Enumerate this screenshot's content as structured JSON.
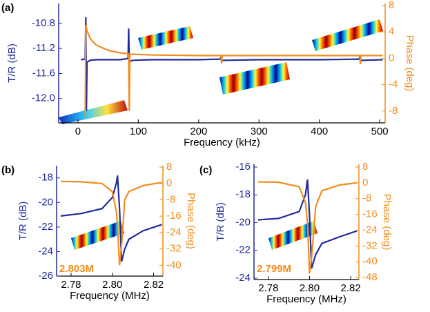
{
  "chart_data": [
    {
      "type": "line",
      "label": "(a)",
      "xlabel": "Frequency (kHz)",
      "ylabel": "T/R (dB)",
      "y2label": "Phase (deg)",
      "x": [
        5,
        12,
        13,
        14,
        15,
        20,
        30,
        50,
        70,
        83,
        84,
        85,
        86,
        90,
        120,
        200,
        236,
        237,
        238,
        239,
        300,
        400,
        466,
        467,
        468,
        469,
        505
      ],
      "series": [
        {
          "name": "T/R",
          "color": "#1f2a9c",
          "values": [
            -11.38,
            -11.37,
            -10.7,
            -12.2,
            -11.42,
            -11.39,
            -11.38,
            -11.38,
            -11.38,
            -11.36,
            -10.88,
            -11.45,
            -11.41,
            -11.39,
            -11.38,
            -11.38,
            -11.37,
            -11.33,
            -11.42,
            -11.39,
            -11.38,
            -11.38,
            -11.37,
            -11.33,
            -11.42,
            -11.39,
            -11.38
          ]
        },
        {
          "name": "Phase",
          "color": "#f28c1c",
          "axis": "y2",
          "values": [
            null,
            -9,
            5.0,
            4.6,
            4.2,
            3,
            2,
            1.2,
            0.8,
            0.7,
            0.6,
            -8,
            0.6,
            0.6,
            0.5,
            0.4,
            0.4,
            0.4,
            -0.8,
            0.4,
            0.4,
            0.4,
            0.4,
            0.4,
            -0.9,
            0.4,
            0.4
          ]
        }
      ],
      "xlim": [
        -32,
        509
      ],
      "xticks": [
        0,
        100,
        200,
        300,
        400,
        500
      ],
      "ylim": [
        -12.39,
        -10.48
      ],
      "yticks": [
        -10.8,
        -11.2,
        -11.6,
        {
          "value": -12,
          "label": "-12.0"
        }
      ],
      "y2lim": [
        -9.8,
        8.3
      ],
      "y2ticks": [
        -8,
        -4,
        0,
        4,
        8
      ]
    },
    {
      "type": "line",
      "label": "(b)",
      "annotation": "2.803M",
      "xlabel": "Frequency (MHz)",
      "ylabel": "T/R (dB)",
      "y2label": "Phase (deg)",
      "x": [
        2.775,
        2.785,
        2.795,
        2.8,
        2.802,
        2.8025,
        2.8035,
        2.8045,
        2.806,
        2.808,
        2.815,
        2.824
      ],
      "series": [
        {
          "name": "T/R",
          "color": "#1f2a9c",
          "values": [
            -21.1,
            -20.9,
            -20.5,
            -19.6,
            -18.4,
            -17.8,
            -20.5,
            -24.8,
            -23.8,
            -23,
            -22.3,
            -21.8
          ]
        },
        {
          "name": "Phase",
          "color": "#f28c1c",
          "axis": "y2",
          "values": [
            1,
            0.8,
            0,
            -4,
            -14,
            -20,
            -40,
            -30,
            -8,
            -4,
            -1,
            0.5
          ]
        }
      ],
      "xlim": [
        2.773,
        2.8245
      ],
      "xticks": [
        2.78,
        {
          "value": 2.8,
          "label": "2.80"
        },
        2.82
      ],
      "ylim": [
        -26,
        -17
      ],
      "yticks": [
        -18,
        -20,
        -22,
        -24,
        -26
      ],
      "y2lim": [
        -45.3,
        8.7
      ],
      "y2ticks": [
        8,
        0,
        -8,
        -16,
        -24,
        -32,
        -40
      ]
    },
    {
      "type": "line",
      "label": "(c)",
      "annotation": "2.799M",
      "xlabel": "Frequency (MHz)",
      "ylabel": "T/R (dB)",
      "y2label": "Phase (deg)",
      "x": [
        2.775,
        2.785,
        2.795,
        2.798,
        2.799,
        2.8,
        2.801,
        2.803,
        2.806,
        2.815,
        2.823
      ],
      "series": [
        {
          "name": "T/R",
          "color": "#1f2a9c",
          "values": [
            -19.8,
            -19.7,
            -19.2,
            -18,
            -16.9,
            -19.5,
            -23.3,
            -22.3,
            -21.5,
            -21,
            -20.6
          ]
        },
        {
          "name": "Phase",
          "color": "#f28c1c",
          "axis": "y2",
          "values": [
            0.5,
            0.3,
            -2,
            -10,
            -20,
            -46,
            -38,
            -12,
            -4,
            -1,
            0
          ]
        }
      ],
      "xlim": [
        2.773,
        2.824
      ],
      "xticks": [
        2.78,
        {
          "value": 2.8,
          "label": "2.80"
        },
        2.82
      ],
      "ylim": [
        -24.1,
        -15.8
      ],
      "yticks": [
        -16,
        -18,
        -20,
        -22,
        -24
      ],
      "y2lim": [
        -49,
        9.4
      ],
      "y2ticks": [
        8,
        0,
        -8,
        -16,
        -24,
        -32,
        -40,
        -48
      ]
    }
  ]
}
